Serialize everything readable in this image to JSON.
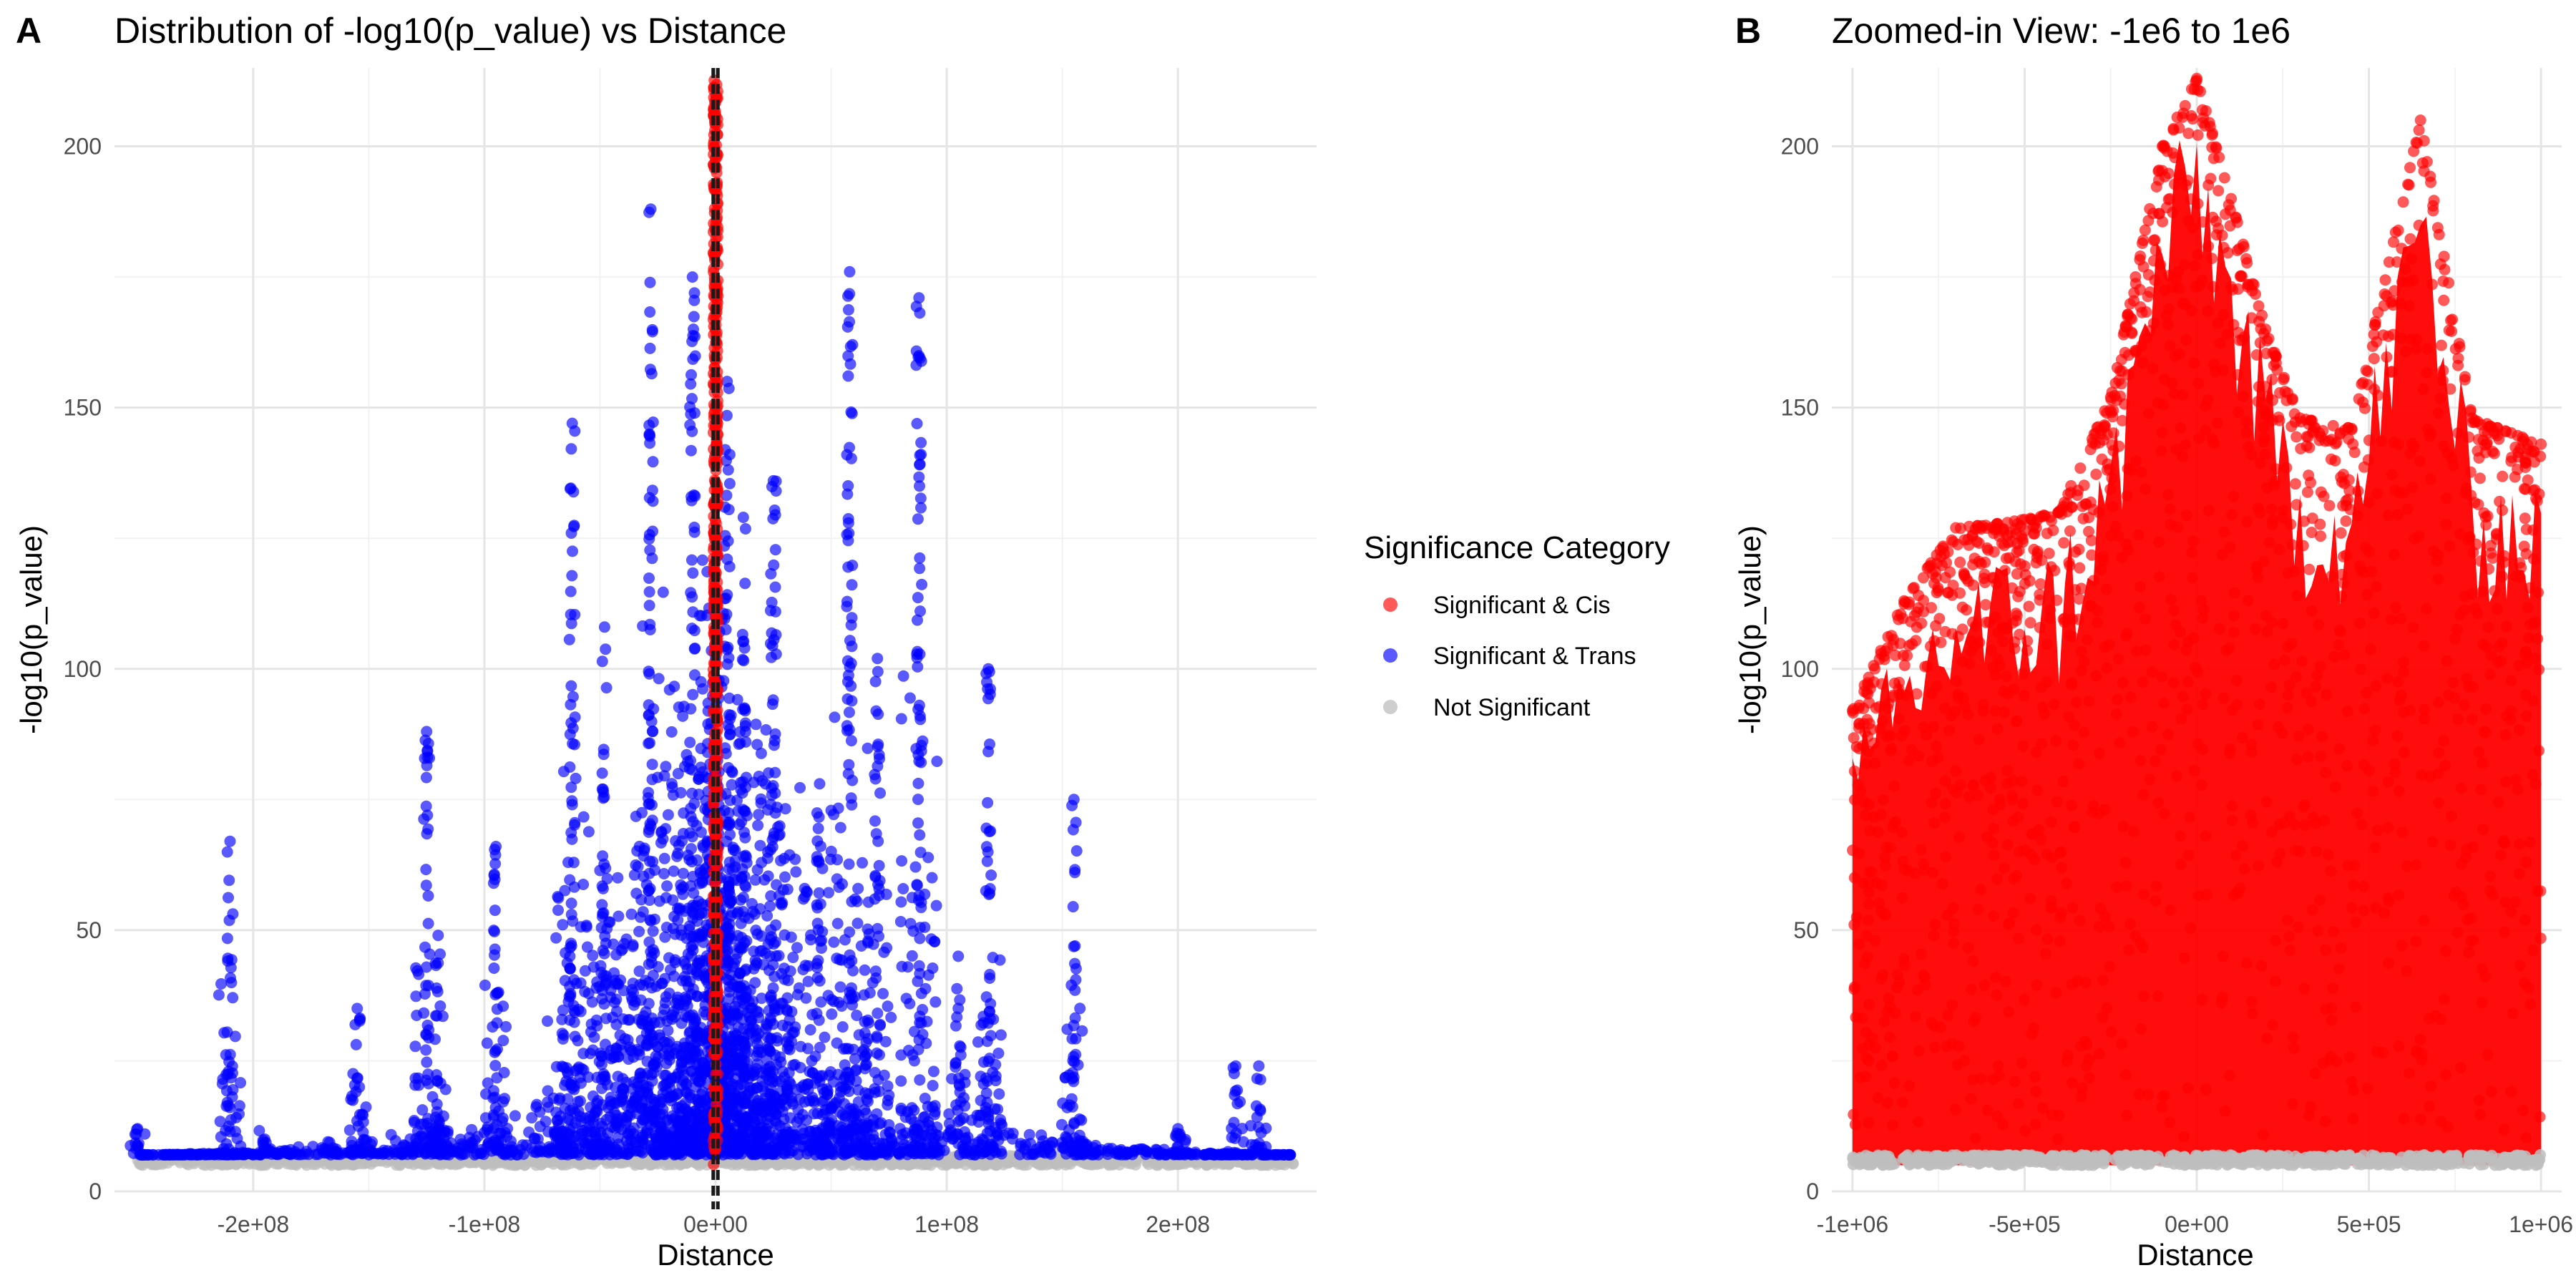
{
  "panels": [
    {
      "letter": "A",
      "title": "Distribution of -log10(p_value) vs Distance"
    },
    {
      "letter": "B",
      "title": "Zoomed-in View: -1e6 to 1e6"
    }
  ],
  "legend": {
    "title": "Significance Category",
    "items": [
      {
        "label": "Significant & Cis",
        "color": "#ff0000"
      },
      {
        "label": "Significant & Trans",
        "color": "#0000ff"
      },
      {
        "label": "Not Significant",
        "color": "#bebebe"
      }
    ]
  },
  "chart_data": [
    {
      "type": "scatter",
      "title": "Distribution of -log10(p_value) vs Distance",
      "xlabel": "Distance",
      "ylabel": "-log10(p_value)",
      "xlim": [
        -260000000,
        260000000
      ],
      "ylim": [
        0,
        215
      ],
      "x_ticks": [
        -200000000,
        -100000000,
        0,
        100000000,
        200000000
      ],
      "x_tick_labels": [
        "-2e+08",
        "-1e+08",
        "0e+00",
        "1e+08",
        "2e+08"
      ],
      "y_ticks": [
        0,
        50,
        100,
        150,
        200
      ],
      "y_tick_labels": [
        "0",
        "50",
        "100",
        "150",
        "200"
      ],
      "grid": true,
      "legend_position": "right",
      "vlines": [
        {
          "x": -1000000,
          "style": "dashed"
        },
        {
          "x": 1000000,
          "style": "dashed"
        }
      ],
      "series": [
        {
          "name": "Significant & Cis",
          "color": "#ff0000",
          "x_range": [
            -1000000,
            1000000
          ],
          "y_range": [
            5,
            213
          ],
          "y_max": 213
        },
        {
          "name": "Significant & Trans",
          "color": "#0000ff",
          "peaks": [
            {
              "x": -250000000,
              "y": 12
            },
            {
              "x": -210000000,
              "y": 67
            },
            {
              "x": -195000000,
              "y": 10
            },
            {
              "x": -155000000,
              "y": 35
            },
            {
              "x": -125000000,
              "y": 88
            },
            {
              "x": -120000000,
              "y": 49
            },
            {
              "x": -95000000,
              "y": 66
            },
            {
              "x": -62000000,
              "y": 147
            },
            {
              "x": -48000000,
              "y": 108
            },
            {
              "x": -28000000,
              "y": 188
            },
            {
              "x": -10000000,
              "y": 175
            },
            {
              "x": 5000000,
              "y": 155
            },
            {
              "x": 12000000,
              "y": 129
            },
            {
              "x": 25000000,
              "y": 136
            },
            {
              "x": 45000000,
              "y": 78
            },
            {
              "x": 58000000,
              "y": 176
            },
            {
              "x": 70000000,
              "y": 102
            },
            {
              "x": 88000000,
              "y": 171
            },
            {
              "x": 105000000,
              "y": 45
            },
            {
              "x": 118000000,
              "y": 100
            },
            {
              "x": 155000000,
              "y": 75
            },
            {
              "x": 200000000,
              "y": 12
            },
            {
              "x": 225000000,
              "y": 24
            },
            {
              "x": 235000000,
              "y": 24
            }
          ]
        },
        {
          "name": "Not Significant",
          "color": "#bebebe",
          "x_range": [
            -250000000,
            250000000
          ],
          "y_range": [
            5,
            7
          ]
        }
      ]
    },
    {
      "type": "scatter",
      "title": "Zoomed-in View: -1e6 to 1e6",
      "xlabel": "Distance",
      "ylabel": "-log10(p_value)",
      "xlim": [
        -1060000,
        1060000
      ],
      "ylim": [
        0,
        215
      ],
      "x_ticks": [
        -1000000,
        -500000,
        0,
        500000,
        1000000
      ],
      "x_tick_labels": [
        "-1e+06",
        "-5e+05",
        "0e+00",
        "5e+05",
        "1e+06"
      ],
      "y_ticks": [
        0,
        50,
        100,
        150,
        200
      ],
      "y_tick_labels": [
        "0",
        "50",
        "100",
        "150",
        "200"
      ],
      "grid": true,
      "series": [
        {
          "name": "Significant & Cis",
          "color": "#ff0000",
          "envelope": [
            {
              "x": -1000000,
              "y": 92
            },
            {
              "x": -850000,
              "y": 113
            },
            {
              "x": -700000,
              "y": 127
            },
            {
              "x": -550000,
              "y": 128
            },
            {
              "x": -400000,
              "y": 130
            },
            {
              "x": -250000,
              "y": 152
            },
            {
              "x": -100000,
              "y": 200
            },
            {
              "x": 0,
              "y": 213
            },
            {
              "x": 100000,
              "y": 190
            },
            {
              "x": 200000,
              "y": 165
            },
            {
              "x": 300000,
              "y": 148
            },
            {
              "x": 450000,
              "y": 146
            },
            {
              "x": 650000,
              "y": 205
            },
            {
              "x": 800000,
              "y": 148
            },
            {
              "x": 1000000,
              "y": 143
            }
          ]
        },
        {
          "name": "Not Significant",
          "color": "#bebebe",
          "x_range": [
            -1000000,
            1000000
          ],
          "y_range": [
            5,
            7
          ]
        }
      ]
    }
  ]
}
